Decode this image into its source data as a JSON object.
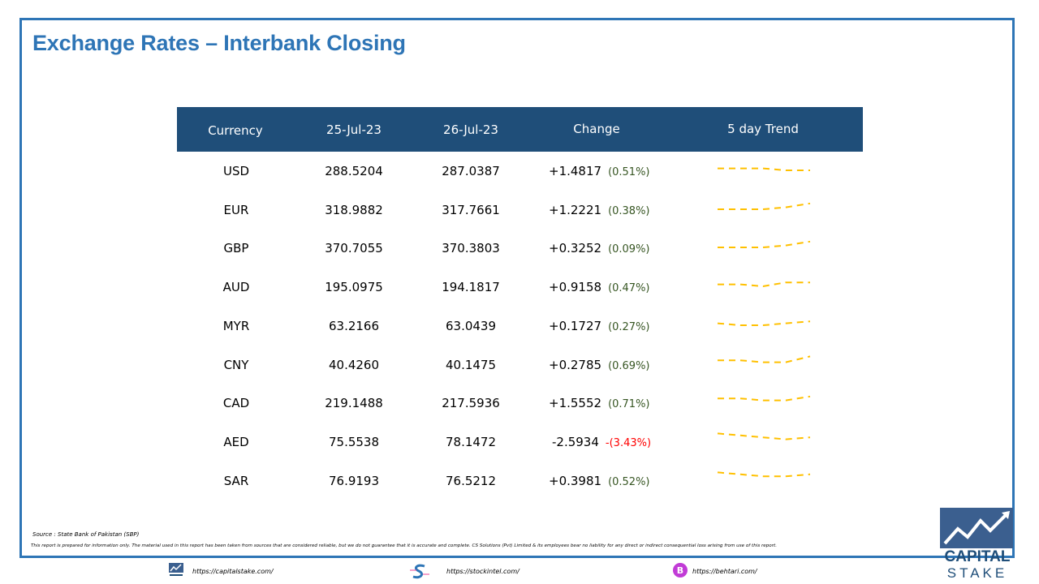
{
  "title": "Exchange Rates – Interbank Closing",
  "table": {
    "headers": [
      "Currency",
      "25-Jul-23",
      "26-Jul-23",
      "Change",
      "5 day Trend"
    ],
    "rows": [
      {
        "currency": "USD",
        "d1": "288.5204",
        "d2": "287.0387",
        "change": "+1.4817",
        "pct": "(0.51%)",
        "trend": [
          2,
          2,
          2,
          1,
          1
        ],
        "negative": false
      },
      {
        "currency": "EUR",
        "d1": "318.9882",
        "d2": "317.7661",
        "change": "+1.2221",
        "pct": "(0.38%)",
        "trend": [
          1,
          1,
          1,
          2,
          4
        ],
        "negative": false
      },
      {
        "currency": "GBP",
        "d1": "370.7055",
        "d2": "370.3803",
        "change": "+0.3252",
        "pct": "(0.09%)",
        "trend": [
          1,
          1,
          1,
          2,
          4
        ],
        "negative": false
      },
      {
        "currency": "AUD",
        "d1": "195.0975",
        "d2": "194.1817",
        "change": "+0.9158",
        "pct": "(0.47%)",
        "trend": [
          2,
          2,
          1,
          3,
          3
        ],
        "negative": false
      },
      {
        "currency": "MYR",
        "d1": "63.2166",
        "d2": "63.0439",
        "change": "+0.1727",
        "pct": "(0.27%)",
        "trend": [
          2,
          1,
          1,
          2,
          3
        ],
        "negative": false
      },
      {
        "currency": "CNY",
        "d1": "40.4260",
        "d2": "40.1475",
        "change": "+0.2785",
        "pct": "(0.69%)",
        "trend": [
          3,
          3,
          2,
          2,
          5
        ],
        "negative": false
      },
      {
        "currency": "CAD",
        "d1": "219.1488",
        "d2": "217.5936",
        "change": "+1.5552",
        "pct": "(0.71%)",
        "trend": [
          3,
          3,
          2,
          2,
          4
        ],
        "negative": false
      },
      {
        "currency": "AED",
        "d1": "75.5538",
        "d2": "78.1472",
        "change": "-2.5934",
        "pct": "-(3.43%)",
        "trend": [
          5,
          4,
          3,
          2,
          3
        ],
        "negative": true
      },
      {
        "currency": "SAR",
        "d1": "76.9193",
        "d2": "76.5212",
        "change": "+0.3981",
        "pct": "(0.52%)",
        "trend": [
          5,
          4,
          3,
          3,
          4
        ],
        "negative": false
      }
    ]
  },
  "source": "Source : State Bank of Pakistan (SBP)",
  "disclaimer": "This report is prepared for information only. The material used in this report has been taken from sources that are considered reliable, but we do not guarantee that it is accurate and complete. CS Solutions (Pvt) Limited & its employees bear no liability for any direct or indirect consequential loss arising from use of this report.",
  "footer": {
    "links": [
      "https://capitalstake.com/",
      "https://stockintel.com/",
      "https://behtari.com/"
    ]
  },
  "logo": {
    "line1": "CAPITAL",
    "line2": "STAKE"
  },
  "colors": {
    "accent": "#2e75b6",
    "header_bg": "#1f4e79",
    "positive": "#375623",
    "negative": "#ff0000",
    "trend": "#ffc000"
  }
}
